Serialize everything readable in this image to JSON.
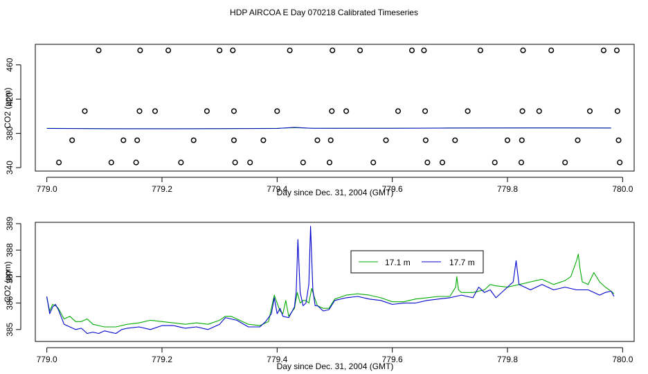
{
  "title": "HDP AIRCOA E  Day 070218  Calibrated Timeseries",
  "chart_data": [
    {
      "type": "scatter",
      "xlabel": "Day since Dec. 31, 2004 (GMT)",
      "ylabel": "CO2 (ppm)",
      "xlim": [
        778.98,
        780.02
      ],
      "ylim": [
        336,
        484
      ],
      "xticks": [
        779.0,
        779.2,
        779.4,
        779.6,
        779.8,
        780.0
      ],
      "xtick_labels": [
        "779.0",
        "779.2",
        "779.4",
        "779.6",
        "779.8",
        "780.0"
      ],
      "yticks": [
        340,
        380,
        420,
        460
      ],
      "ytick_labels": [
        "340",
        "380",
        "420",
        "460"
      ],
      "grid": false,
      "colors": {
        "line_a": "#00aa00",
        "line_b": "#0000cc",
        "points": "#000000"
      },
      "circles": [
        {
          "x": 779.09,
          "y": 477
        },
        {
          "x": 779.162,
          "y": 477
        },
        {
          "x": 779.211,
          "y": 477
        },
        {
          "x": 779.3,
          "y": 477
        },
        {
          "x": 779.323,
          "y": 477
        },
        {
          "x": 779.422,
          "y": 477
        },
        {
          "x": 779.496,
          "y": 477
        },
        {
          "x": 779.544,
          "y": 477
        },
        {
          "x": 779.634,
          "y": 477
        },
        {
          "x": 779.655,
          "y": 477
        },
        {
          "x": 779.753,
          "y": 477
        },
        {
          "x": 779.827,
          "y": 477
        },
        {
          "x": 779.876,
          "y": 477
        },
        {
          "x": 779.967,
          "y": 477
        },
        {
          "x": 779.99,
          "y": 477
        },
        {
          "x": 779.066,
          "y": 406
        },
        {
          "x": 779.161,
          "y": 406
        },
        {
          "x": 779.188,
          "y": 406
        },
        {
          "x": 779.278,
          "y": 406
        },
        {
          "x": 779.325,
          "y": 406
        },
        {
          "x": 779.4,
          "y": 406
        },
        {
          "x": 779.495,
          "y": 406
        },
        {
          "x": 779.52,
          "y": 406
        },
        {
          "x": 779.61,
          "y": 406
        },
        {
          "x": 779.657,
          "y": 406
        },
        {
          "x": 779.731,
          "y": 406
        },
        {
          "x": 779.826,
          "y": 406
        },
        {
          "x": 779.855,
          "y": 406
        },
        {
          "x": 779.943,
          "y": 406
        },
        {
          "x": 779.991,
          "y": 406
        },
        {
          "x": 779.044,
          "y": 372
        },
        {
          "x": 779.133,
          "y": 372
        },
        {
          "x": 779.157,
          "y": 372
        },
        {
          "x": 779.255,
          "y": 372
        },
        {
          "x": 779.325,
          "y": 372
        },
        {
          "x": 779.376,
          "y": 372
        },
        {
          "x": 779.47,
          "y": 372
        },
        {
          "x": 779.493,
          "y": 372
        },
        {
          "x": 779.589,
          "y": 372
        },
        {
          "x": 779.658,
          "y": 372
        },
        {
          "x": 779.709,
          "y": 372
        },
        {
          "x": 779.8,
          "y": 372
        },
        {
          "x": 779.825,
          "y": 372
        },
        {
          "x": 779.922,
          "y": 372
        },
        {
          "x": 779.993,
          "y": 372
        },
        {
          "x": 779.021,
          "y": 346
        },
        {
          "x": 779.112,
          "y": 346
        },
        {
          "x": 779.155,
          "y": 346
        },
        {
          "x": 779.233,
          "y": 346
        },
        {
          "x": 779.327,
          "y": 346
        },
        {
          "x": 779.353,
          "y": 346
        },
        {
          "x": 779.445,
          "y": 346
        },
        {
          "x": 779.491,
          "y": 346
        },
        {
          "x": 779.567,
          "y": 346
        },
        {
          "x": 779.661,
          "y": 346
        },
        {
          "x": 779.687,
          "y": 346
        },
        {
          "x": 779.778,
          "y": 346
        },
        {
          "x": 779.824,
          "y": 346
        },
        {
          "x": 779.9,
          "y": 346
        },
        {
          "x": 779.995,
          "y": 346
        }
      ],
      "line_series": [
        {
          "values": [
            [
              779.0,
              385.9
            ],
            [
              779.1,
              385.6
            ],
            [
              779.2,
              385.5
            ],
            [
              779.3,
              385.6
            ],
            [
              779.4,
              385.9
            ],
            [
              779.43,
              386.6
            ],
            [
              779.46,
              386.1
            ],
            [
              779.5,
              386.0
            ],
            [
              779.6,
              386.1
            ],
            [
              779.7,
              386.3
            ],
            [
              779.8,
              386.4
            ],
            [
              779.9,
              386.5
            ],
            [
              779.98,
              386.3
            ]
          ]
        },
        {
          "values": [
            [
              779.0,
              385.7
            ],
            [
              779.1,
              385.4
            ],
            [
              779.2,
              385.3
            ],
            [
              779.3,
              385.5
            ],
            [
              779.4,
              385.7
            ],
            [
              779.43,
              387.0
            ],
            [
              779.46,
              386.0
            ],
            [
              779.5,
              385.9
            ],
            [
              779.6,
              386.0
            ],
            [
              779.7,
              386.2
            ],
            [
              779.8,
              386.3
            ],
            [
              779.9,
              386.4
            ],
            [
              779.98,
              386.2
            ]
          ]
        }
      ]
    },
    {
      "type": "line",
      "xlabel": "Day since Dec. 31, 2004 (GMT)",
      "ylabel": "CO2 (ppm)",
      "xlim": [
        778.98,
        780.02
      ],
      "ylim": [
        384.55,
        389.05
      ],
      "xticks": [
        779.0,
        779.2,
        779.4,
        779.6,
        779.8,
        780.0
      ],
      "xtick_labels": [
        "779.0",
        "779.2",
        "779.4",
        "779.6",
        "779.8",
        "780.0"
      ],
      "yticks": [
        385,
        386,
        387,
        388,
        389
      ],
      "ytick_labels": [
        "385",
        "386",
        "387",
        "388",
        "389"
      ],
      "grid": false,
      "legend_placement": "top-right",
      "series": [
        {
          "name": "17.1 m",
          "color": "#00aa00",
          "values": [
            [
              779.0,
              386.2
            ],
            [
              779.005,
              385.7
            ],
            [
              779.01,
              385.95
            ],
            [
              779.015,
              385.9
            ],
            [
              779.02,
              385.8
            ],
            [
              779.03,
              385.4
            ],
            [
              779.04,
              385.5
            ],
            [
              779.05,
              385.3
            ],
            [
              779.06,
              385.3
            ],
            [
              779.07,
              385.4
            ],
            [
              779.08,
              385.2
            ],
            [
              779.09,
              385.15
            ],
            [
              779.1,
              385.1
            ],
            [
              779.12,
              385.1
            ],
            [
              779.14,
              385.2
            ],
            [
              779.16,
              385.25
            ],
            [
              779.18,
              385.35
            ],
            [
              779.2,
              385.3
            ],
            [
              779.22,
              385.25
            ],
            [
              779.24,
              385.2
            ],
            [
              779.26,
              385.25
            ],
            [
              779.28,
              385.2
            ],
            [
              779.3,
              385.35
            ],
            [
              779.31,
              385.5
            ],
            [
              779.32,
              385.5
            ],
            [
              779.33,
              385.4
            ],
            [
              779.35,
              385.2
            ],
            [
              779.37,
              385.15
            ],
            [
              779.385,
              385.3
            ],
            [
              779.395,
              386.3
            ],
            [
              779.4,
              386.0
            ],
            [
              779.405,
              385.7
            ],
            [
              779.41,
              385.6
            ],
            [
              779.415,
              386.1
            ],
            [
              779.42,
              385.5
            ],
            [
              779.43,
              385.8
            ],
            [
              779.435,
              386.4
            ],
            [
              779.44,
              386.0
            ],
            [
              779.445,
              386.1
            ],
            [
              779.45,
              386.1
            ],
            [
              779.455,
              386.0
            ],
            [
              779.46,
              386.55
            ],
            [
              779.465,
              386.2
            ],
            [
              779.47,
              385.9
            ],
            [
              779.48,
              385.8
            ],
            [
              779.49,
              385.8
            ],
            [
              779.5,
              386.15
            ],
            [
              779.52,
              386.3
            ],
            [
              779.54,
              386.35
            ],
            [
              779.56,
              386.3
            ],
            [
              779.58,
              386.2
            ],
            [
              779.6,
              386.05
            ],
            [
              779.62,
              386.05
            ],
            [
              779.64,
              386.15
            ],
            [
              779.66,
              386.2
            ],
            [
              779.68,
              386.25
            ],
            [
              779.7,
              386.25
            ],
            [
              779.71,
              386.6
            ],
            [
              779.712,
              387.0
            ],
            [
              779.715,
              386.5
            ],
            [
              779.72,
              386.4
            ],
            [
              779.74,
              386.4
            ],
            [
              779.76,
              386.5
            ],
            [
              779.77,
              386.7
            ],
            [
              779.78,
              386.65
            ],
            [
              779.8,
              386.6
            ],
            [
              779.82,
              386.7
            ],
            [
              779.84,
              386.8
            ],
            [
              779.86,
              386.9
            ],
            [
              779.88,
              386.7
            ],
            [
              779.9,
              386.85
            ],
            [
              779.91,
              387.0
            ],
            [
              779.92,
              387.6
            ],
            [
              779.923,
              387.85
            ],
            [
              779.926,
              387.3
            ],
            [
              779.93,
              386.8
            ],
            [
              779.94,
              386.7
            ],
            [
              779.95,
              387.15
            ],
            [
              779.96,
              386.8
            ],
            [
              779.97,
              386.6
            ],
            [
              779.98,
              386.45
            ],
            [
              779.985,
              386.35
            ]
          ]
        },
        {
          "name": "17.7 m",
          "color": "#0000cc",
          "values": [
            [
              779.0,
              386.25
            ],
            [
              779.005,
              385.6
            ],
            [
              779.01,
              385.85
            ],
            [
              779.015,
              385.95
            ],
            [
              779.02,
              385.75
            ],
            [
              779.03,
              385.2
            ],
            [
              779.04,
              385.1
            ],
            [
              779.05,
              385.0
            ],
            [
              779.06,
              385.05
            ],
            [
              779.07,
              384.85
            ],
            [
              779.08,
              384.9
            ],
            [
              779.09,
              384.85
            ],
            [
              779.1,
              384.95
            ],
            [
              779.12,
              384.85
            ],
            [
              779.13,
              385.0
            ],
            [
              779.14,
              385.05
            ],
            [
              779.16,
              385.1
            ],
            [
              779.18,
              385.0
            ],
            [
              779.2,
              385.15
            ],
            [
              779.22,
              385.15
            ],
            [
              779.24,
              385.05
            ],
            [
              779.26,
              385.1
            ],
            [
              779.28,
              385.0
            ],
            [
              779.3,
              385.2
            ],
            [
              779.31,
              385.45
            ],
            [
              779.32,
              385.4
            ],
            [
              779.33,
              385.35
            ],
            [
              779.35,
              385.1
            ],
            [
              779.37,
              385.1
            ],
            [
              779.38,
              385.3
            ],
            [
              779.39,
              385.6
            ],
            [
              779.395,
              386.2
            ],
            [
              779.4,
              385.6
            ],
            [
              779.405,
              385.8
            ],
            [
              779.41,
              385.5
            ],
            [
              779.42,
              385.45
            ],
            [
              779.43,
              385.85
            ],
            [
              779.433,
              386.4
            ],
            [
              779.436,
              388.4
            ],
            [
              779.44,
              386.4
            ],
            [
              779.445,
              385.9
            ],
            [
              779.45,
              386.0
            ],
            [
              779.455,
              386.7
            ],
            [
              779.458,
              388.9
            ],
            [
              779.462,
              386.5
            ],
            [
              779.466,
              385.9
            ],
            [
              779.47,
              385.9
            ],
            [
              779.48,
              385.7
            ],
            [
              779.49,
              385.75
            ],
            [
              779.5,
              386.1
            ],
            [
              779.52,
              386.2
            ],
            [
              779.54,
              386.25
            ],
            [
              779.56,
              386.15
            ],
            [
              779.58,
              386.1
            ],
            [
              779.6,
              385.95
            ],
            [
              779.62,
              386.0
            ],
            [
              779.64,
              386.0
            ],
            [
              779.66,
              386.1
            ],
            [
              779.68,
              386.15
            ],
            [
              779.7,
              386.2
            ],
            [
              779.72,
              386.3
            ],
            [
              779.74,
              386.2
            ],
            [
              779.75,
              386.6
            ],
            [
              779.76,
              386.4
            ],
            [
              779.77,
              386.5
            ],
            [
              779.78,
              386.2
            ],
            [
              779.8,
              386.6
            ],
            [
              779.81,
              386.8
            ],
            [
              779.815,
              387.6
            ],
            [
              779.82,
              386.7
            ],
            [
              779.84,
              386.5
            ],
            [
              779.86,
              386.7
            ],
            [
              779.88,
              386.5
            ],
            [
              779.9,
              386.6
            ],
            [
              779.92,
              386.5
            ],
            [
              779.94,
              386.5
            ],
            [
              779.95,
              386.4
            ],
            [
              779.96,
              386.3
            ],
            [
              779.97,
              386.4
            ],
            [
              779.98,
              386.45
            ],
            [
              779.985,
              386.25
            ]
          ]
        }
      ]
    }
  ]
}
